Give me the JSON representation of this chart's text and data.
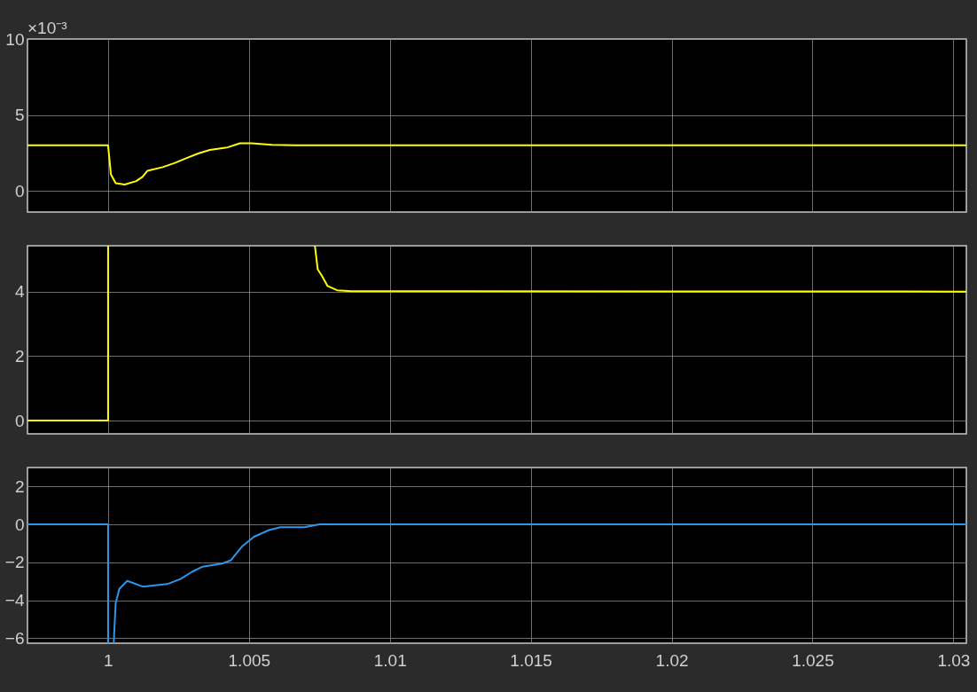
{
  "chart_data": [
    {
      "type": "line",
      "annotations": [
        "×10⁻³"
      ],
      "x": [
        0.99714,
        1.0,
        1.0001,
        1.00027,
        1.00059,
        1.001,
        1.00122,
        1.0014,
        1.00194,
        1.00235,
        1.00279,
        1.0032,
        1.00361,
        1.00424,
        1.00468,
        1.00509,
        1.00581,
        1.00666,
        1.03046
      ],
      "series": [
        {
          "color": "#ffff00",
          "values": [
            3,
            3,
            1.09,
            0.5,
            0.41,
            0.64,
            0.92,
            1.32,
            1.56,
            1.82,
            2.16,
            2.46,
            2.69,
            2.86,
            3.13,
            3.13,
            3.03,
            3,
            3
          ]
        }
      ],
      "xlim": [
        0.99714,
        1.03046
      ],
      "xticks": [
        1,
        1.005,
        1.01,
        1.015,
        1.02,
        1.025,
        1.03
      ],
      "ylim": [
        -1.4,
        10
      ],
      "yticks": [
        0,
        5,
        10
      ],
      "grid": true,
      "tick_labels": "y"
    },
    {
      "type": "line",
      "series": [
        {
          "color": "#ffff00",
          "x": [
            0.99714,
            1.0,
            1.0
          ],
          "values": [
            0,
            0,
            5.42
          ]
        },
        {
          "color": "#ffff00",
          "x": [
            1.00734,
            1.00744,
            1.0076,
            1.00779,
            1.00813,
            1.00863,
            1.03046
          ],
          "values": [
            5.42,
            4.69,
            4.47,
            4.17,
            4.04,
            4.01,
            4
          ]
        }
      ],
      "xlim": [
        0.99714,
        1.03046
      ],
      "xticks": [
        1,
        1.005,
        1.01,
        1.015,
        1.02,
        1.025,
        1.03
      ],
      "ylim": [
        -0.41,
        5.42
      ],
      "yticks": [
        0,
        2,
        4
      ],
      "grid": true,
      "tick_labels": "y"
    },
    {
      "type": "line",
      "series": [
        {
          "color": "#2e96e8",
          "x": [
            0.99714,
            1.0,
            1.0
          ],
          "values": [
            0,
            0,
            -6.27
          ]
        },
        {
          "color": "#2e96e8",
          "x": [
            1.0002,
            1.00027,
            1.0004,
            1.00068,
            1.00125,
            1.0021,
            1.00257,
            1.00298,
            1.00336,
            1.00405,
            1.00436,
            1.00477,
            1.00518,
            1.00571,
            1.00612,
            1.00697,
            1.0075,
            1.03046
          ],
          "values": [
            -6.27,
            -4.15,
            -3.4,
            -2.98,
            -3.29,
            -3.15,
            -2.88,
            -2.5,
            -2.23,
            -2.07,
            -1.89,
            -1.14,
            -0.65,
            -0.3,
            -0.15,
            -0.15,
            0,
            0
          ]
        }
      ],
      "xlim": [
        0.99714,
        1.03046
      ],
      "xticks": [
        1,
        1.005,
        1.01,
        1.015,
        1.02,
        1.025,
        1.03
      ],
      "ylim": [
        -6.27,
        3
      ],
      "yticks": [
        -6,
        -4,
        -2,
        0,
        2
      ],
      "grid": true
    }
  ]
}
